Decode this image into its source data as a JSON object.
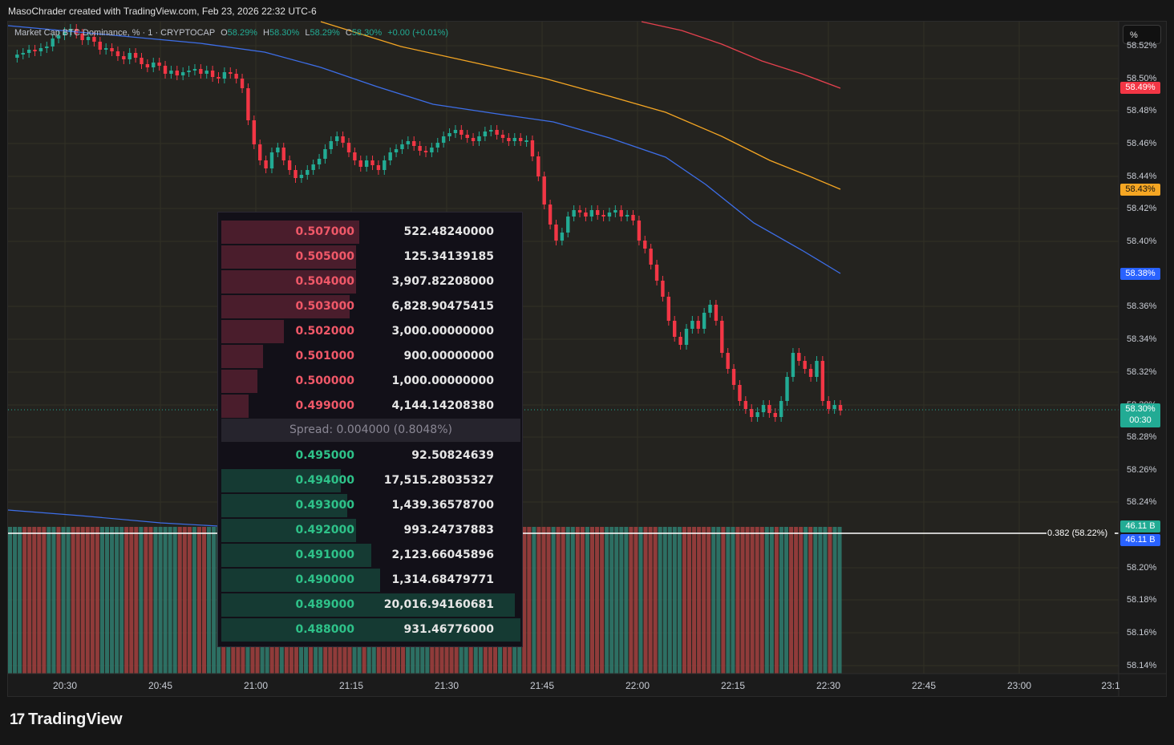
{
  "header": {
    "title": "MasoChrader created with TradingView.com, Feb 23, 2026 22:32 UTC-6"
  },
  "symbol": {
    "name": "Market Cap BTC Dominance, % · 1 · CRYPTOCAP",
    "o": "58.29%",
    "h": "58.30%",
    "l": "58.29%",
    "c": "58.30%",
    "change": "+0.00 (+0.01%)",
    "o_label": "O",
    "h_label": "H",
    "l_label": "L",
    "c_label": "C"
  },
  "unit_button": "%",
  "price_axis": [
    "58.52%",
    "58.50%",
    "58.48%",
    "58.46%",
    "58.44%",
    "58.42%",
    "58.40%",
    "58.36%",
    "58.34%",
    "58.32%",
    "58.30%",
    "58.28%",
    "58.26%",
    "58.24%",
    "58.20%",
    "58.18%",
    "58.16%",
    "58.14%"
  ],
  "price_tags": {
    "red_ma": "58.49%",
    "orange_ma": "58.43%",
    "blue_ma": "58.38%",
    "last_price": "58.30%",
    "countdown": "00:30",
    "volume_1": "46.11 B",
    "volume_2": "46.11 B"
  },
  "time_axis": [
    "20:30",
    "20:45",
    "21:00",
    "21:15",
    "21:30",
    "21:45",
    "22:00",
    "22:15",
    "22:30",
    "22:45",
    "23:00",
    "23:1"
  ],
  "fib_label": "0.382 (58.22%)",
  "orderbook": {
    "asks": [
      {
        "price": "0.507000",
        "amount": "522.48240000",
        "depth": 0.46
      },
      {
        "price": "0.505000",
        "amount": "125.34139185",
        "depth": 0.45
      },
      {
        "price": "0.504000",
        "amount": "3,907.82208000",
        "depth": 0.45
      },
      {
        "price": "0.503000",
        "amount": "6,828.90475415",
        "depth": 0.43
      },
      {
        "price": "0.502000",
        "amount": "3,000.00000000",
        "depth": 0.21
      },
      {
        "price": "0.501000",
        "amount": "900.00000000",
        "depth": 0.14
      },
      {
        "price": "0.500000",
        "amount": "1,000.00000000",
        "depth": 0.12
      },
      {
        "price": "0.499000",
        "amount": "4,144.14208380",
        "depth": 0.09
      }
    ],
    "spread": "Spread: 0.004000 (0.8048%)",
    "bids": [
      {
        "price": "0.495000",
        "amount": "92.50824639",
        "depth": 0.0
      },
      {
        "price": "0.494000",
        "amount": "17,515.28035327",
        "depth": 0.4
      },
      {
        "price": "0.493000",
        "amount": "1,439.36578700",
        "depth": 0.42
      },
      {
        "price": "0.492000",
        "amount": "993.24737883",
        "depth": 0.45
      },
      {
        "price": "0.491000",
        "amount": "2,123.66045896",
        "depth": 0.5
      },
      {
        "price": "0.490000",
        "amount": "1,314.68479771",
        "depth": 0.53
      },
      {
        "price": "0.489000",
        "amount": "20,016.94160681",
        "depth": 0.98
      },
      {
        "price": "0.488000",
        "amount": "931.46776000",
        "depth": 1.0
      }
    ]
  },
  "colors": {
    "up": "#22ab94",
    "down": "#f23645",
    "red_ma": "#e5414e",
    "orange_ma": "#f5a623",
    "blue_ma": "#3d6ee8",
    "fib": "#ffffff"
  },
  "brand": "TradingView",
  "chart_data": {
    "type": "candlestick",
    "series": [
      {
        "name": "Market Cap BTC Dominance, %",
        "close_last": 58.3
      }
    ],
    "ylim": [
      58.13,
      58.53
    ]
  }
}
